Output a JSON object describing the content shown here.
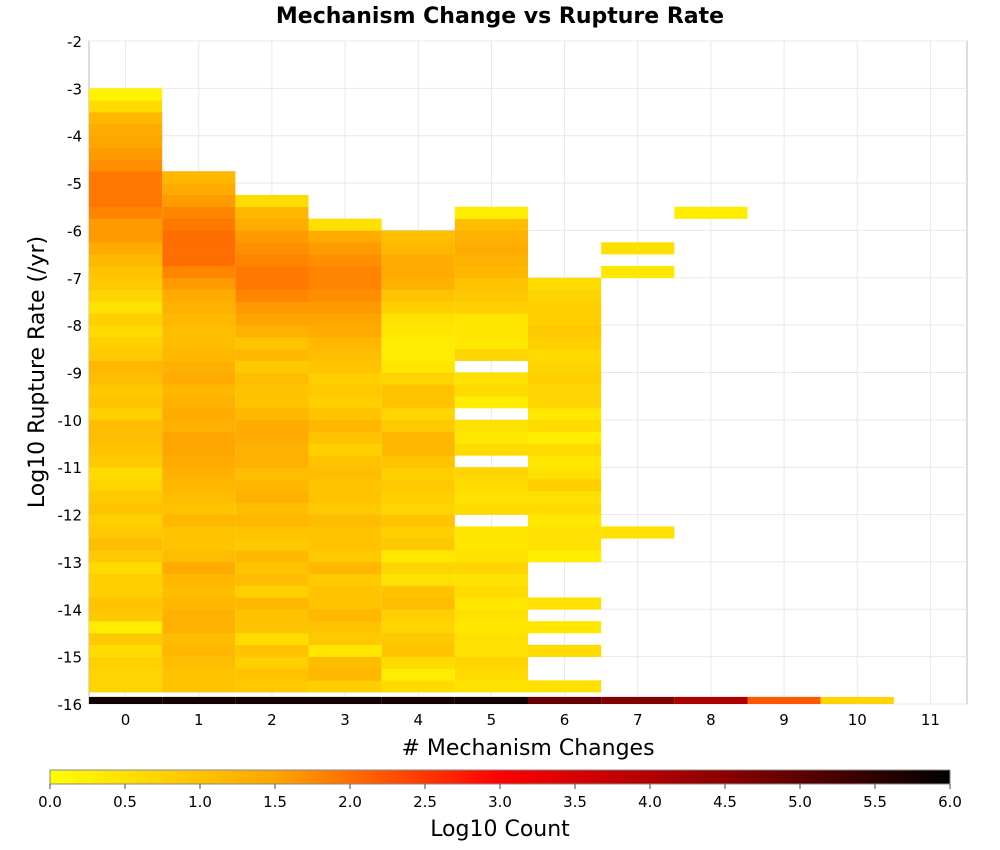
{
  "chart_data": {
    "type": "heatmap",
    "title": "Mechanism Change vs Rupture Rate",
    "xlabel": "# Mechanism Changes",
    "ylabel": "Log10 Rupture Rate (/yr)",
    "xlim": [
      -0.5,
      11.5
    ],
    "ylim": [
      -16,
      -2
    ],
    "x_ticks": [
      "0",
      "1",
      "2",
      "3",
      "4",
      "5",
      "6",
      "7",
      "8",
      "9",
      "10",
      "11"
    ],
    "y_ticks": [
      "-2",
      "-3",
      "-4",
      "-5",
      "-6",
      "-7",
      "-8",
      "-9",
      "-10",
      "-11",
      "-12",
      "-13",
      "-14",
      "-15",
      "-16"
    ],
    "grid": true,
    "bin_height": 0.25,
    "y_bin_start": -15.75,
    "columns": [
      {
        "x": 0,
        "values": [
          0.7,
          0.7,
          0.8,
          0.6,
          0.9,
          0.3,
          0.9,
          1.0,
          0.8,
          0.8,
          0.6,
          0.9,
          1.1,
          0.9,
          0.8,
          1.0,
          0.9,
          0.7,
          0.6,
          0.9,
          1.0,
          1.1,
          1.1,
          0.8,
          1.0,
          0.9,
          1.1,
          1.2,
          0.9,
          0.8,
          0.6,
          0.8,
          0.5,
          0.7,
          0.9,
          1.0,
          1.2,
          1.4,
          1.6,
          1.6,
          1.8,
          1.9,
          1.9,
          1.9,
          1.7,
          1.6,
          1.5,
          1.4,
          1.2,
          0.6,
          0.2
        ]
      },
      {
        "x": 1,
        "values": [
          1.0,
          1.0,
          1.1,
          1.2,
          1.1,
          1.3,
          1.3,
          1.2,
          1.1,
          1.2,
          1.4,
          1.1,
          1.0,
          1.0,
          1.2,
          1.0,
          1.1,
          1.2,
          1.3,
          1.4,
          1.5,
          1.5,
          1.3,
          1.4,
          1.3,
          1.2,
          1.4,
          1.3,
          1.2,
          1.1,
          1.1,
          1.2,
          1.3,
          1.4,
          1.6,
          1.8,
          2.0,
          2.0,
          2.0,
          1.9,
          1.8,
          1.6,
          1.4,
          1.2
        ]
      },
      {
        "x": 2,
        "values": [
          0.9,
          1.0,
          0.8,
          1.0,
          0.6,
          1.0,
          1.0,
          1.2,
          0.8,
          1.1,
          1.0,
          1.2,
          0.9,
          1.0,
          1.2,
          1.1,
          1.3,
          1.2,
          1.1,
          1.3,
          1.3,
          1.4,
          1.4,
          1.2,
          1.0,
          1.0,
          1.1,
          0.9,
          1.2,
          1.0,
          1.3,
          1.5,
          1.6,
          1.8,
          1.9,
          1.9,
          1.8,
          1.7,
          1.6,
          1.4,
          1.2,
          0.6
        ]
      },
      {
        "x": 3,
        "values": [
          0.8,
          1.2,
          1.1,
          0.4,
          0.9,
          1.0,
          1.2,
          1.0,
          1.0,
          0.9,
          1.2,
          0.9,
          1.0,
          1.0,
          1.1,
          0.9,
          1.0,
          1.0,
          1.1,
          1.0,
          0.8,
          1.0,
          1.2,
          1.0,
          0.8,
          0.9,
          0.8,
          1.0,
          1.1,
          1.2,
          1.4,
          1.5,
          1.6,
          1.7,
          1.8,
          1.8,
          1.7,
          1.6,
          1.4,
          0.5
        ]
      },
      {
        "x": 4,
        "values": [
          0.6,
          0.3,
          0.6,
          1.0,
          0.9,
          0.7,
          0.8,
          1.1,
          1.0,
          0.5,
          0.7,
          0.4,
          0.9,
          0.8,
          1.0,
          0.7,
          0.8,
          0.9,
          0.8,
          1.0,
          1.2,
          1.2,
          0.9,
          0.7,
          1.0,
          1.0,
          0.7,
          0.4,
          0.3,
          0.3,
          0.4,
          0.5,
          0.8,
          1.0,
          1.3,
          1.4,
          1.4,
          1.2,
          1.1
        ]
      },
      {
        "x": 5,
        "values": [
          0.5,
          0.6,
          0.7,
          0.5,
          0.5,
          0.4,
          0.5,
          0.4,
          0.6,
          0.5,
          0.7,
          0.5,
          0.4,
          0.4,
          null,
          0.6,
          0.5,
          0.6,
          0.7,
          null,
          0.6,
          0.4,
          0.5,
          null,
          0.3,
          0.6,
          0.5,
          null,
          0.7,
          0.4,
          0.4,
          0.4,
          0.8,
          0.9,
          1.0,
          1.2,
          1.3,
          1.4,
          1.3,
          1.1,
          0.3
        ]
      },
      {
        "x": 6,
        "values": [
          0.5,
          null,
          null,
          0.6,
          null,
          0.4,
          null,
          0.5,
          null,
          null,
          null,
          0.3,
          0.5,
          0.5,
          0.4,
          0.6,
          0.5,
          0.8,
          0.5,
          0.4,
          0.6,
          0.3,
          0.6,
          0.4,
          0.7,
          0.7,
          0.8,
          0.7,
          0.6,
          0.8,
          0.9,
          0.8,
          0.8,
          0.7,
          0.6
        ]
      },
      {
        "x": 7,
        "values": [
          null,
          null,
          null,
          null,
          null,
          null,
          null,
          null,
          null,
          null,
          null,
          null,
          null,
          0.5,
          null,
          null,
          null,
          null,
          null,
          null,
          null,
          null,
          null,
          null,
          null,
          null,
          null,
          null,
          null,
          null,
          null,
          null,
          null,
          null,
          null,
          0.4,
          null,
          0.5
        ]
      },
      {
        "x": 8,
        "values": [
          null,
          null,
          null,
          null,
          null,
          null,
          null,
          null,
          null,
          null,
          null,
          null,
          null,
          null,
          null,
          null,
          null,
          null,
          null,
          null,
          null,
          null,
          null,
          null,
          null,
          null,
          null,
          null,
          null,
          null,
          null,
          null,
          null,
          null,
          null,
          null,
          null,
          null,
          null,
          null,
          0.3
        ]
      }
    ],
    "bottom_row": {
      "y_range": [
        -16,
        -15.85
      ],
      "values": [
        5.8,
        5.8,
        5.8,
        5.8,
        5.8,
        5.8,
        4.9,
        4.6,
        4.1,
        2.2,
        0.7,
        null
      ]
    },
    "colorbar": {
      "label": "Log10 Count",
      "range": [
        0,
        6
      ],
      "ticks": [
        "0.0",
        "0.5",
        "1.0",
        "1.5",
        "2.0",
        "2.5",
        "3.0",
        "3.5",
        "4.0",
        "4.5",
        "5.0",
        "5.5",
        "6.0"
      ],
      "colors": [
        "#ffff00",
        "#ffa500",
        "#ff0000",
        "#8b0000",
        "#000000"
      ]
    }
  }
}
